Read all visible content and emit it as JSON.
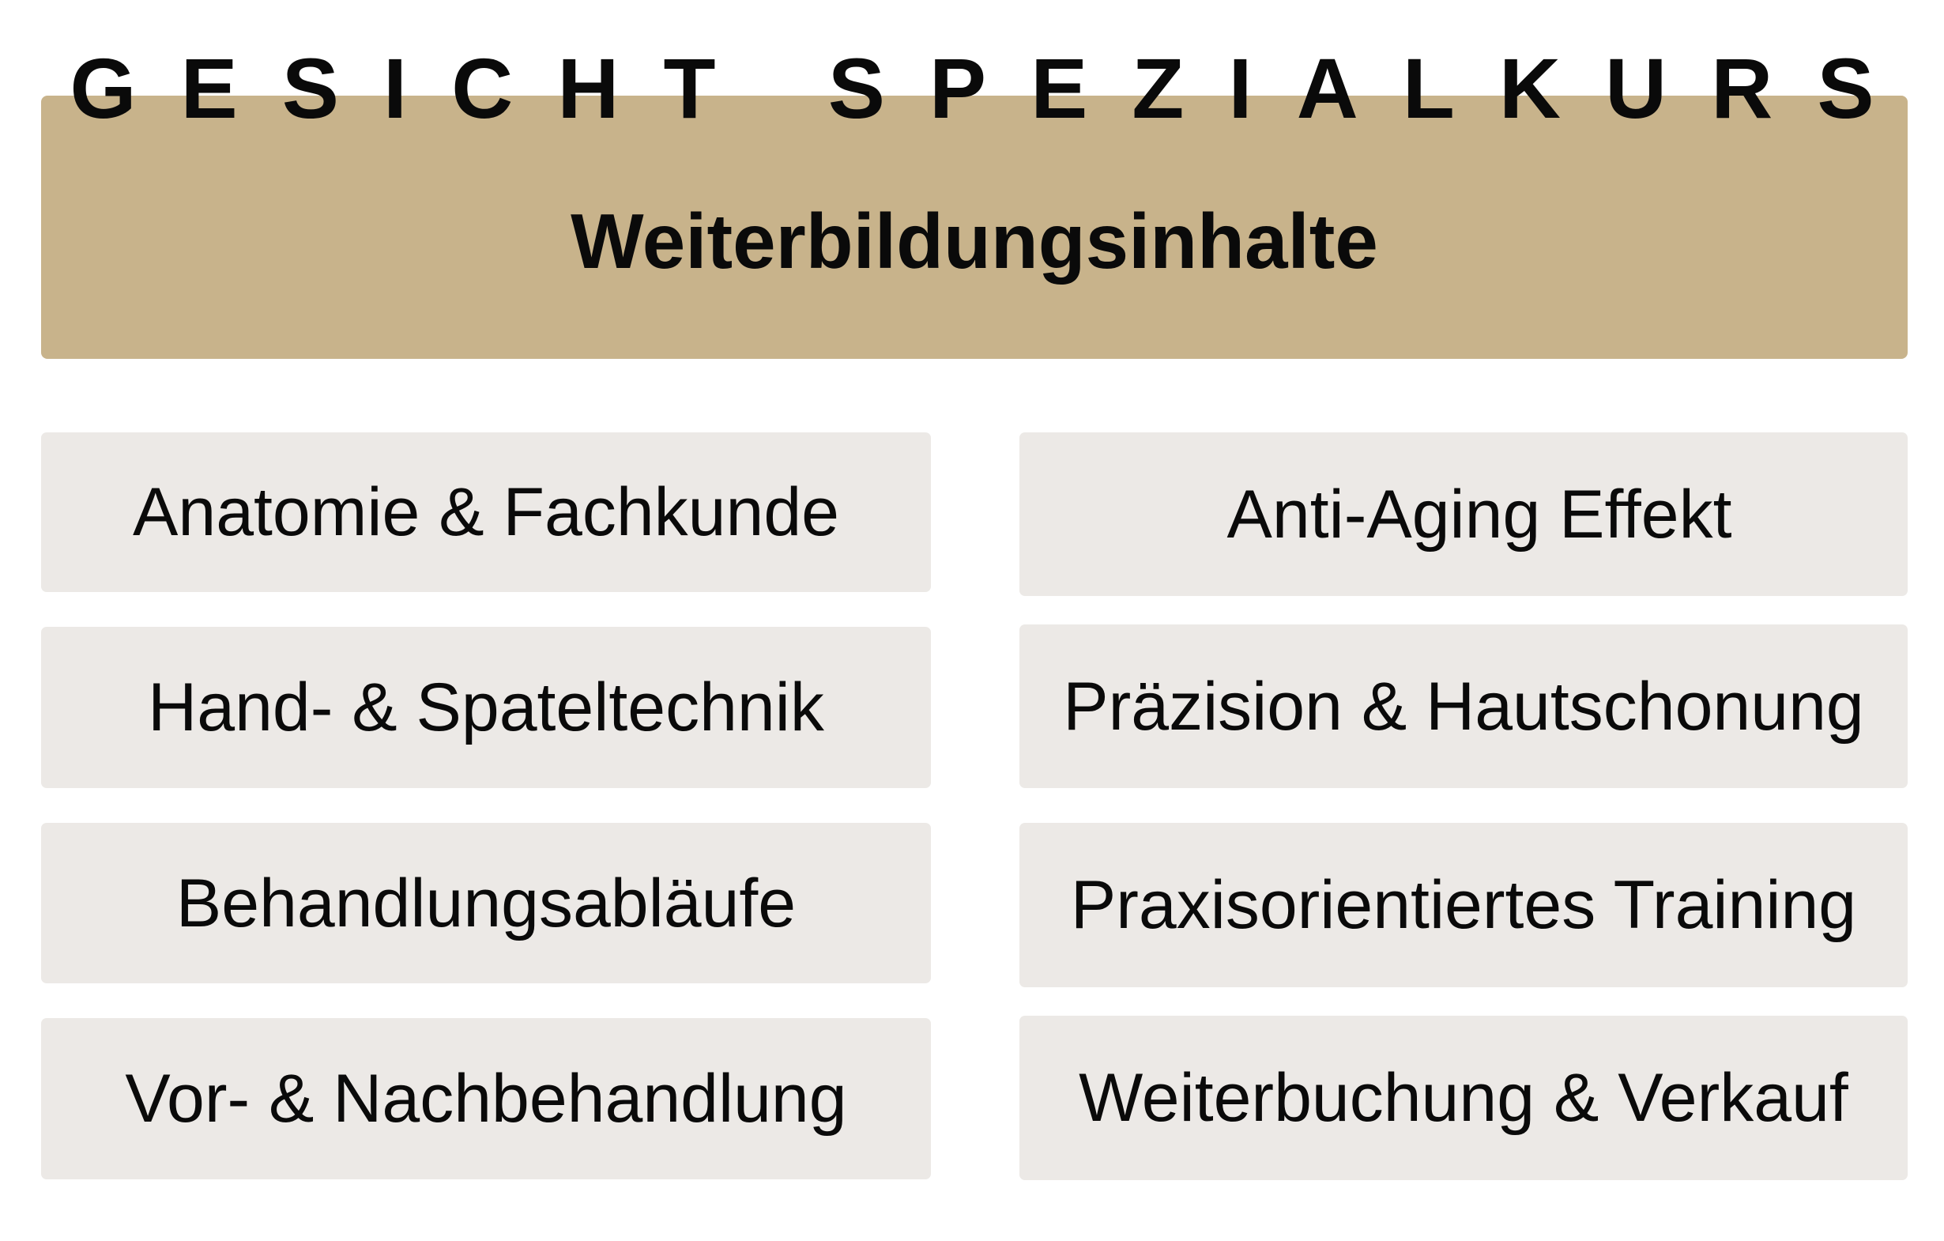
{
  "header": {
    "title": "GESICHT SPEZIALKURS",
    "subtitle": "Weiterbildungsinhalte",
    "banner_color": "#c8b38b"
  },
  "left_items": [
    {
      "label": "Anatomie & Fachkunde"
    },
    {
      "label": "Hand- & Spateltechnik"
    },
    {
      "label": "Behandlungsabläufe"
    },
    {
      "label": "Vor- & Nachbehandlung"
    }
  ],
  "right_items": [
    {
      "label": "Anti-Aging Effekt"
    },
    {
      "label": "Präzision & Hautschonung"
    },
    {
      "label": "Praxisorientiertes Training"
    },
    {
      "label": "Weiterbuchung & Verkauf"
    }
  ],
  "card_color": "#ece9e6"
}
